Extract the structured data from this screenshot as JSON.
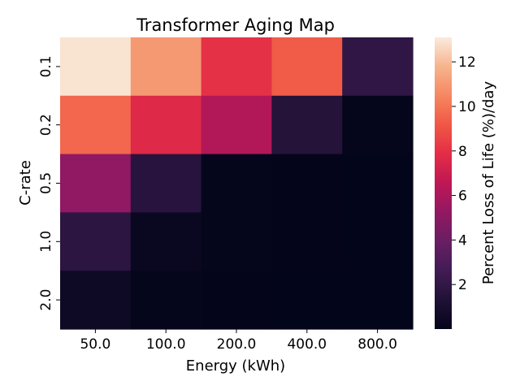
{
  "chart_data": {
    "type": "heatmap",
    "title": "Transformer Aging Map",
    "xlabel": "Energy (kWh)",
    "ylabel": "C-rate",
    "x_categories": [
      "50.0",
      "100.0",
      "200.0",
      "400.0",
      "800.0"
    ],
    "y_categories": [
      "0.1",
      "0.2",
      "0.5",
      "1.0",
      "2.0"
    ],
    "values": [
      [
        12.9,
        11.0,
        8.0,
        9.3,
        1.9
      ],
      [
        9.6,
        7.7,
        6.2,
        1.5,
        0.1
      ],
      [
        5.2,
        1.6,
        0.1,
        0.05,
        0.02
      ],
      [
        1.8,
        0.3,
        0.08,
        0.03,
        0.01
      ],
      [
        0.5,
        0.1,
        0.04,
        0.02,
        0.01
      ]
    ],
    "colorbar": {
      "label": "Percent Loss of Life (%)/day",
      "range": [
        0,
        13.1
      ],
      "ticks": [
        2,
        4,
        6,
        8,
        10,
        12
      ],
      "tick_labels": [
        "2",
        "4",
        "6",
        "8",
        "10",
        "12"
      ],
      "colormap": "rocket"
    }
  }
}
